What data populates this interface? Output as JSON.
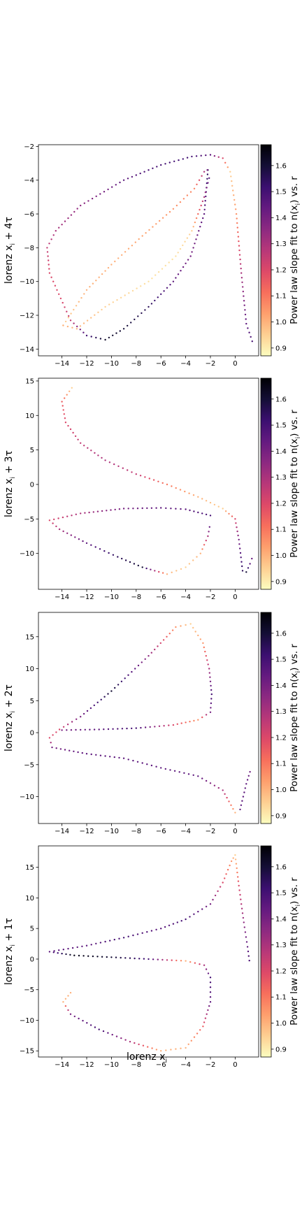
{
  "figure": {
    "xlabel": "lorenz x",
    "xlabel_sub": "i"
  },
  "colorbar": {
    "label": "Power law slope fit to n(x",
    "label_sub": "i",
    "label_tail": ") vs. r",
    "ticks": [
      0.9,
      1.0,
      1.1,
      1.2,
      1.3,
      1.4,
      1.5,
      1.6
    ],
    "tick_labels": [
      "0.9",
      "1.0",
      "1.1",
      "1.2",
      "1.3",
      "1.4",
      "1.5",
      "1.6"
    ],
    "range": [
      0.87,
      1.68
    ],
    "colormap": "magma_r"
  },
  "chart_data": [
    {
      "type": "scatter",
      "ylabel_pre": "lorenz x",
      "ylabel_sub": "i",
      "ylabel_post": " + 4τ",
      "xlim": [
        -15.9,
        1.9
      ],
      "ylim": [
        -14.4,
        -1.9
      ],
      "xticks": [
        -14,
        -12,
        -10,
        -8,
        -6,
        -4,
        -2,
        0
      ],
      "yticks": [
        -14,
        -12,
        -10,
        -8,
        -6,
        -4,
        -2
      ],
      "curves": [
        {
          "points": [
            [
              -2.2,
              -3.4
            ],
            [
              -2.5,
              -6.0
            ],
            [
              -3.6,
              -8.5
            ],
            [
              -5.0,
              -10.0
            ],
            [
              -7.0,
              -11.5
            ],
            [
              -9.0,
              -12.8
            ],
            [
              -10.5,
              -13.45
            ],
            [
              -12.0,
              -13.2
            ],
            [
              -13.3,
              -12.3
            ],
            [
              -14.1,
              -11.0
            ],
            [
              -15.0,
              -9.5
            ],
            [
              -15.2,
              -8.0
            ],
            [
              -14.5,
              -7.0
            ],
            [
              -12.5,
              -5.5
            ],
            [
              -9.0,
              -4.0
            ],
            [
              -6.0,
              -3.1
            ],
            [
              -3.5,
              -2.6
            ],
            [
              -2.0,
              -2.5
            ],
            [
              -1.0,
              -2.7
            ],
            [
              -0.4,
              -3.5
            ],
            [
              0.1,
              -6.0
            ],
            [
              0.5,
              -9.5
            ],
            [
              0.9,
              -12.5
            ],
            [
              1.5,
              -13.8
            ]
          ],
          "values": [
            1.55,
            1.45,
            1.4,
            1.45,
            1.55,
            1.6,
            1.62,
            1.5,
            1.25,
            1.2,
            1.2,
            1.25,
            1.3,
            1.35,
            1.45,
            1.5,
            1.5,
            1.45,
            1.2,
            0.95,
            1.05,
            1.3,
            1.45,
            1.5
          ]
        },
        {
          "points": [
            [
              -13.9,
              -12.6
            ],
            [
              -12.0,
              -10.5
            ],
            [
              -10.0,
              -9.0
            ],
            [
              -7.5,
              -7.3
            ],
            [
              -5.0,
              -5.7
            ],
            [
              -3.3,
              -4.5
            ],
            [
              -2.5,
              -3.5
            ],
            [
              -2.0,
              -3.3
            ]
          ],
          "values": [
            0.95,
            1.0,
            1.0,
            1.02,
            1.05,
            1.08,
            1.3,
            1.5
          ]
        },
        {
          "points": [
            [
              -13.9,
              -12.6
            ],
            [
              -12.8,
              -12.8
            ],
            [
              -10.5,
              -11.5
            ],
            [
              -7.0,
              -10.0
            ],
            [
              -4.8,
              -8.5
            ],
            [
              -3.5,
              -7.0
            ],
            [
              -2.5,
              -5.0
            ],
            [
              -2.0,
              -3.6
            ]
          ],
          "values": [
            1.0,
            1.0,
            0.95,
            0.92,
            0.92,
            0.95,
            1.3,
            1.5
          ]
        }
      ]
    },
    {
      "type": "scatter",
      "ylabel_pre": "lorenz x",
      "ylabel_sub": "i",
      "ylabel_post": " + 3τ",
      "xlim": [
        -15.9,
        1.9
      ],
      "ylim": [
        -15.2,
        15.4
      ],
      "xticks": [
        -14,
        -12,
        -10,
        -8,
        -6,
        -4,
        -2,
        0
      ],
      "yticks": [
        -10,
        -5,
        0,
        5,
        10,
        15
      ],
      "curves": [
        {
          "points": [
            [
              -13.2,
              14.0
            ],
            [
              -14.0,
              12.0
            ],
            [
              -13.7,
              9.0
            ],
            [
              -12.5,
              6.0
            ],
            [
              -10.5,
              3.5
            ],
            [
              -8.0,
              1.5
            ],
            [
              -5.5,
              0.0
            ],
            [
              -3.0,
              -1.8
            ],
            [
              -1.0,
              -3.5
            ],
            [
              0.0,
              -5.0
            ],
            [
              0.3,
              -8.0
            ],
            [
              0.6,
              -12.5
            ],
            [
              0.9,
              -12.7
            ],
            [
              1.2,
              -11.5
            ],
            [
              1.5,
              -10.0
            ]
          ],
          "values": [
            0.95,
            1.15,
            1.2,
            1.25,
            1.3,
            1.25,
            1.1,
            1.0,
            0.95,
            1.2,
            1.4,
            1.55,
            1.6,
            1.45,
            1.4
          ]
        },
        {
          "points": [
            [
              -2.0,
              -4.5
            ],
            [
              -4.0,
              -3.6
            ],
            [
              -6.0,
              -3.4
            ],
            [
              -9.0,
              -3.5
            ],
            [
              -12.5,
              -4.2
            ],
            [
              -15.0,
              -5.2
            ],
            [
              -14.2,
              -6.5
            ],
            [
              -12.0,
              -8.5
            ],
            [
              -9.5,
              -10.5
            ],
            [
              -7.5,
              -12.0
            ],
            [
              -5.5,
              -13.0
            ],
            [
              -4.0,
              -12.0
            ],
            [
              -2.8,
              -10.0
            ],
            [
              -2.2,
              -7.5
            ],
            [
              -2.0,
              -5.5
            ]
          ],
          "values": [
            1.5,
            1.45,
            1.45,
            1.4,
            1.3,
            1.2,
            1.3,
            1.45,
            1.55,
            1.6,
            1.0,
            0.95,
            1.0,
            1.3,
            1.5
          ]
        }
      ]
    },
    {
      "type": "scatter",
      "ylabel_pre": "lorenz x",
      "ylabel_sub": "i",
      "ylabel_post": " + 2τ",
      "xlim": [
        -15.9,
        1.9
      ],
      "ylim": [
        -14.2,
        18.8
      ],
      "xticks": [
        -14,
        -12,
        -10,
        -8,
        -6,
        -4,
        -2,
        0
      ],
      "yticks": [
        -10,
        -5,
        0,
        5,
        10,
        15
      ],
      "curves": [
        {
          "points": [
            [
              -14.0,
              0.4
            ],
            [
              -11.0,
              0.5
            ],
            [
              -8.0,
              0.7
            ],
            [
              -5.0,
              1.2
            ],
            [
              -3.0,
              2.0
            ],
            [
              -2.0,
              3.2
            ],
            [
              -1.9,
              6.0
            ],
            [
              -2.1,
              10.0
            ],
            [
              -2.6,
              14.0
            ],
            [
              -3.6,
              17.0
            ],
            [
              -4.8,
              16.5
            ],
            [
              -7.0,
              12.0
            ],
            [
              -10.0,
              6.5
            ],
            [
              -12.5,
              2.5
            ],
            [
              -14.2,
              0.5
            ],
            [
              -15.0,
              -0.8
            ],
            [
              -14.8,
              -2.3
            ],
            [
              -12.0,
              -3.3
            ],
            [
              -9.0,
              -4.0
            ],
            [
              -6.0,
              -5.5
            ],
            [
              -3.0,
              -6.8
            ],
            [
              -1.0,
              -9.0
            ],
            [
              0.0,
              -12.5
            ],
            [
              0.4,
              -12.0
            ],
            [
              0.9,
              -8.0
            ],
            [
              1.3,
              -5.5
            ]
          ],
          "values": [
            1.4,
            1.45,
            1.5,
            1.2,
            1.05,
            1.4,
            1.5,
            1.3,
            1.05,
            0.95,
            1.05,
            1.35,
            1.6,
            1.4,
            1.2,
            1.2,
            1.4,
            1.45,
            1.45,
            1.45,
            1.45,
            1.3,
            1.0,
            1.45,
            1.45,
            1.4
          ]
        }
      ]
    },
    {
      "type": "scatter",
      "ylabel_pre": "lorenz x",
      "ylabel_sub": "i",
      "ylabel_post": " + 1τ",
      "xlim": [
        -15.9,
        1.9
      ],
      "ylim": [
        -16.0,
        18.5
      ],
      "xticks": [
        -14,
        -12,
        -10,
        -8,
        -6,
        -4,
        -2,
        0
      ],
      "yticks": [
        -15,
        -10,
        -5,
        0,
        5,
        10,
        15
      ],
      "curves": [
        {
          "points": [
            [
              -13.3,
              -5.5
            ],
            [
              -13.9,
              -7.0
            ],
            [
              -13.3,
              -9.0
            ],
            [
              -11.0,
              -11.5
            ],
            [
              -8.5,
              -13.5
            ],
            [
              -6.0,
              -15.0
            ],
            [
              -4.0,
              -14.5
            ],
            [
              -2.6,
              -11.0
            ],
            [
              -2.0,
              -7.0
            ],
            [
              -2.0,
              -3.0
            ],
            [
              -2.5,
              -1.0
            ],
            [
              -4.0,
              -0.3
            ],
            [
              -7.0,
              0.0
            ],
            [
              -10.0,
              0.3
            ],
            [
              -13.0,
              0.6
            ],
            [
              -15.0,
              1.2
            ],
            [
              -12.0,
              2.2
            ],
            [
              -9.0,
              3.5
            ],
            [
              -6.0,
              5.0
            ],
            [
              -4.0,
              6.5
            ],
            [
              -2.0,
              9.0
            ],
            [
              -1.0,
              12.5
            ],
            [
              -0.3,
              16.0
            ],
            [
              0.0,
              17.0
            ],
            [
              0.3,
              12.0
            ],
            [
              0.7,
              6.0
            ],
            [
              1.0,
              2.0
            ],
            [
              1.2,
              -1.0
            ]
          ],
          "values": [
            1.0,
            1.0,
            1.4,
            1.5,
            1.3,
            1.0,
            1.0,
            1.15,
            1.45,
            1.5,
            1.3,
            1.0,
            1.5,
            1.6,
            1.65,
            1.45,
            1.45,
            1.5,
            1.45,
            1.5,
            1.4,
            1.2,
            1.05,
            0.95,
            1.2,
            1.35,
            1.45,
            1.5
          ]
        }
      ]
    }
  ]
}
